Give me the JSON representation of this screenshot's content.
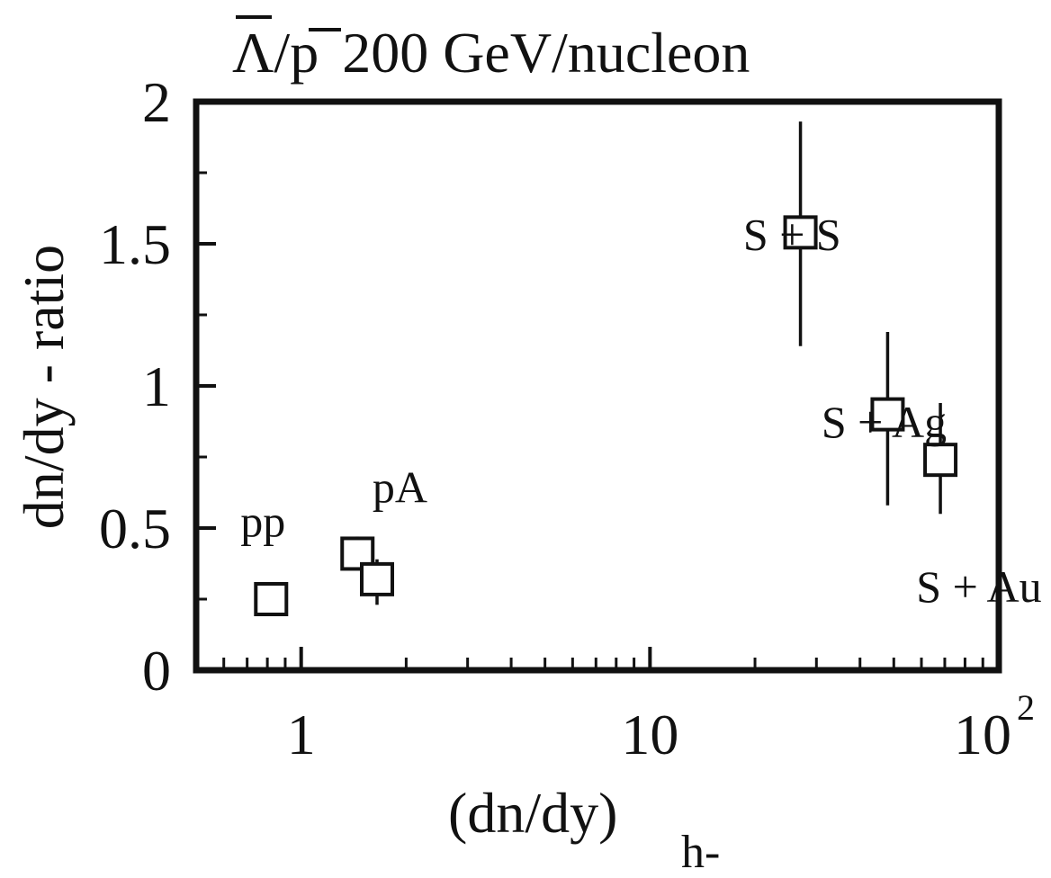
{
  "chart_data": {
    "type": "scatter",
    "title": "Λ̄/p̄  200 GeV/nucleon",
    "title_parts": {
      "lambda": "Λ",
      "slash": "/",
      "p": "p",
      "rest": "200 GeV/nucleon"
    },
    "xlabel": "(dn/dy)",
    "xlabel_sub": "h-",
    "ylabel": "dn/dy - ratio",
    "x_scale": "log",
    "xlim": [
      0.5,
      100
    ],
    "ylim": [
      0,
      2
    ],
    "x_tick_labels": [
      {
        "value": 1,
        "label": "1"
      },
      {
        "value": 10,
        "label": "10"
      },
      {
        "value": 100,
        "label": "10",
        "sup": "2"
      }
    ],
    "y_tick_labels": [
      {
        "value": 0,
        "label": "0"
      },
      {
        "value": 0.5,
        "label": "0.5"
      },
      {
        "value": 1,
        "label": "1"
      },
      {
        "value": 1.5,
        "label": "1.5"
      },
      {
        "value": 2,
        "label": "2"
      }
    ],
    "grid": false,
    "marker": "open-square",
    "points": [
      {
        "x": 0.82,
        "y": 0.25,
        "yerr_low": 0.2,
        "yerr_high": 0.3
      },
      {
        "x": 1.45,
        "y": 0.41,
        "yerr_low": 0.36,
        "yerr_high": 0.47
      },
      {
        "x": 1.65,
        "y": 0.32,
        "yerr_low": 0.23,
        "yerr_high": 0.39
      },
      {
        "x": 27,
        "y": 1.54,
        "yerr_low": 1.14,
        "yerr_high": 1.93
      },
      {
        "x": 48,
        "y": 0.9,
        "yerr_low": 0.58,
        "yerr_high": 1.19
      },
      {
        "x": 68,
        "y": 0.74,
        "yerr_low": 0.55,
        "yerr_high": 0.94
      }
    ],
    "annotations": [
      {
        "text": "pp",
        "x": 0.67,
        "y": 0.47
      },
      {
        "text": "pA",
        "x": 1.6,
        "y": 0.59
      },
      {
        "text": "S + S",
        "x": 18.5,
        "y": 1.48
      },
      {
        "text": "S + Ag",
        "x": 31,
        "y": 0.82
      },
      {
        "text": "S + Au",
        "x": 58,
        "y": 0.24
      }
    ]
  }
}
